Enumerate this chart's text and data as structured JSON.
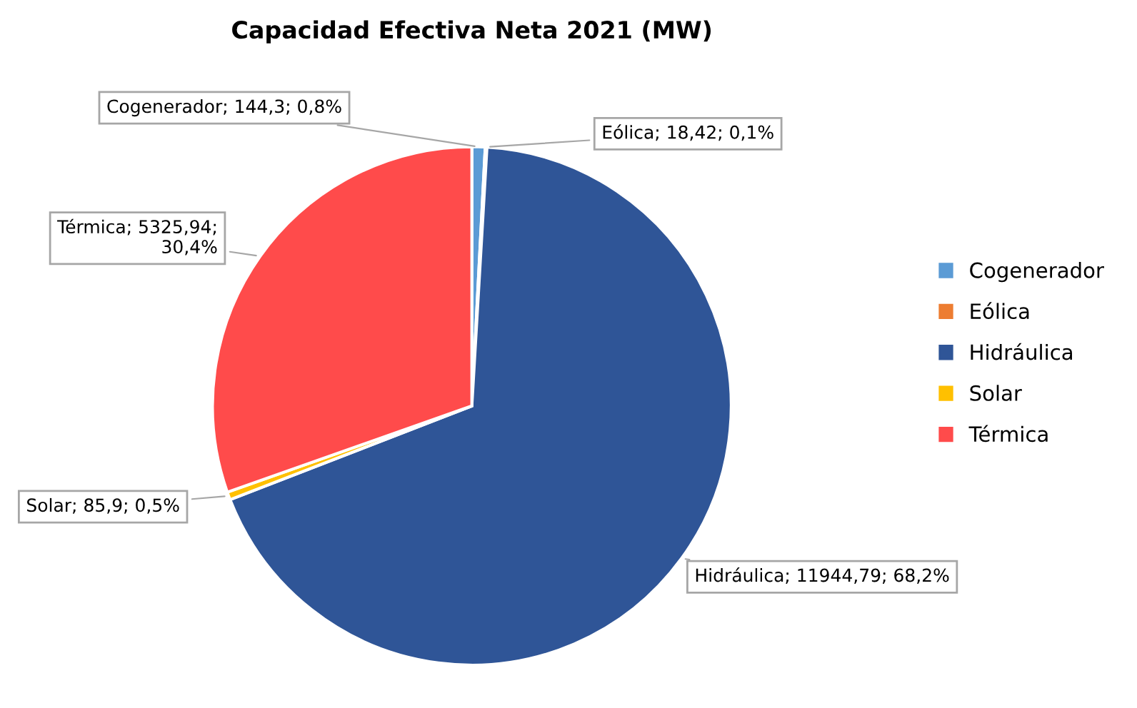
{
  "chart_data": {
    "type": "pie",
    "title": "Capacidad Efectiva Neta 2021 (MW)",
    "categories": [
      "Cogenerador",
      "Eólica",
      "Hidráulica",
      "Solar",
      "Térmica"
    ],
    "values": [
      144.3,
      18.42,
      11944.79,
      85.9,
      5325.94
    ],
    "value_labels": [
      "Cogenerador; 144,3; 0,8%",
      "Eólica; 18,42; 0,1%",
      "Hidráulica; 11944,79; 68,2%",
      "Solar; 85,9; 0,5%",
      "Térmica; 5325,94;\n30,4%"
    ],
    "colors": [
      "#5b9bd5",
      "#ed7d31",
      "#2f5597",
      "#ffc000",
      "#ff4b4b"
    ],
    "legend": "right"
  }
}
